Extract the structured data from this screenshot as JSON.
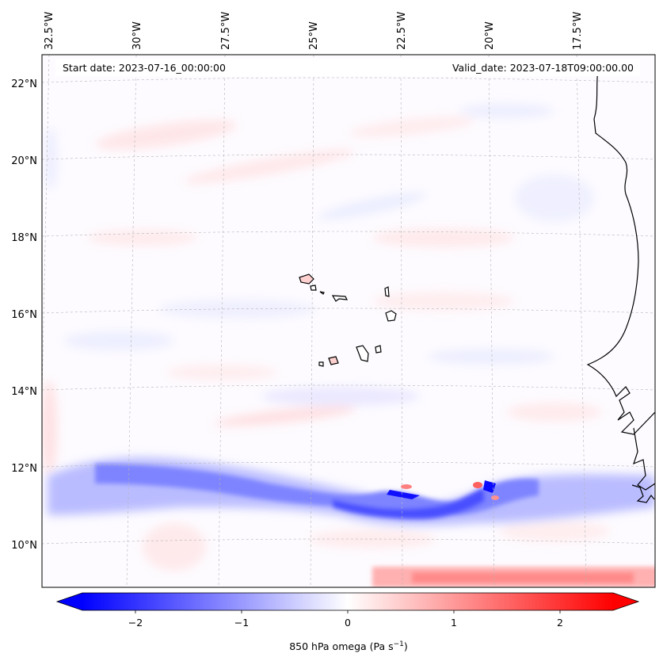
{
  "map": {
    "start_date": "Start date: 2023-07-16_00:00:00",
    "valid_date": "Valid_date: 2023-07-18T09:00:00.00",
    "lon_labels": [
      "32.5°W",
      "30°W",
      "27.5°W",
      "25°W",
      "22.5°W",
      "20°W",
      "17.5°W"
    ],
    "lat_labels": [
      "22°N",
      "20°N",
      "18°N",
      "16°N",
      "14°N",
      "12°N",
      "10°N"
    ],
    "extent": {
      "lon_min": -32.8,
      "lon_max": -15.5,
      "lat_min": 8.9,
      "lat_max": 22.7
    },
    "colors": {
      "negative": "#0000ff",
      "zero": "#ffffff",
      "positive": "#ff0000",
      "coast": "#000000",
      "grid": "#b0b0b0"
    }
  },
  "colorbar": {
    "ticks": [
      "−2",
      "−1",
      "0",
      "1",
      "2"
    ],
    "tick_values": [
      -2,
      -1,
      0,
      1,
      2
    ],
    "range": [
      -2.5,
      2.5
    ],
    "label_main": "850 hPa omega (Pa s",
    "label_sup": "−1",
    "label_close": ")"
  }
}
